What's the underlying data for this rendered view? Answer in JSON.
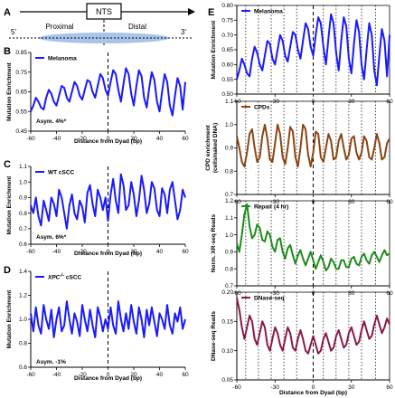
{
  "diagram": {
    "label": "A",
    "nts": "NTS",
    "proximal": "Proximal",
    "distal": "Distal",
    "five_prime": "5'",
    "three_prime": "3'"
  },
  "chart_data": [
    {
      "panel": "B",
      "type": "line",
      "legend": "Melanoma",
      "color": "#1a1aff",
      "ylabel": "Mutation Enrichment",
      "xlabel": "Distance from Dyad (bp)",
      "xlim": [
        -60,
        60
      ],
      "xticks": [
        -60,
        -40,
        -20,
        0,
        20,
        40,
        60
      ],
      "ylim": [
        0.45,
        0.85
      ],
      "yticks": [
        0.45,
        0.55,
        0.65,
        0.75,
        0.85
      ],
      "ytick_labels": [
        "0.45",
        "0.55",
        "0.65",
        "0.75",
        "0.85"
      ],
      "annotation": "Asym. 4%*",
      "x": [
        -60,
        -58,
        -56,
        -54,
        -52,
        -50,
        -48,
        -46,
        -44,
        -42,
        -40,
        -38,
        -36,
        -34,
        -32,
        -30,
        -28,
        -26,
        -24,
        -22,
        -20,
        -18,
        -16,
        -14,
        -12,
        -10,
        -8,
        -6,
        -4,
        -2,
        0,
        2,
        4,
        6,
        8,
        10,
        12,
        14,
        16,
        18,
        20,
        22,
        24,
        26,
        28,
        30,
        32,
        34,
        36,
        38,
        40,
        42,
        44,
        46,
        48,
        50,
        52,
        54,
        56,
        58,
        60
      ],
      "y": [
        0.55,
        0.58,
        0.62,
        0.6,
        0.57,
        0.56,
        0.62,
        0.66,
        0.64,
        0.6,
        0.58,
        0.63,
        0.68,
        0.67,
        0.62,
        0.6,
        0.65,
        0.7,
        0.68,
        0.63,
        0.61,
        0.66,
        0.71,
        0.7,
        0.65,
        0.62,
        0.68,
        0.74,
        0.72,
        0.66,
        0.63,
        0.7,
        0.76,
        0.74,
        0.66,
        0.6,
        0.69,
        0.77,
        0.74,
        0.64,
        0.58,
        0.68,
        0.76,
        0.73,
        0.62,
        0.57,
        0.67,
        0.75,
        0.71,
        0.6,
        0.55,
        0.65,
        0.74,
        0.7,
        0.58,
        0.53,
        0.63,
        0.72,
        0.68,
        0.56,
        0.7
      ]
    },
    {
      "panel": "C",
      "type": "line",
      "legend": "WT cSCC",
      "color": "#1a1aff",
      "ylabel": "Mutation Enrichment",
      "xlabel": "Distance from Dyad (bp)",
      "xlim": [
        -60,
        60
      ],
      "xticks": [
        -60,
        -40,
        -20,
        0,
        20,
        40,
        60
      ],
      "ylim": [
        0.6,
        1.1
      ],
      "yticks": [
        0.6,
        0.7,
        0.8,
        0.9,
        1.0,
        1.1
      ],
      "ytick_labels": [
        "0.6",
        "0.7",
        "0.8",
        "0.9",
        "1.0",
        "1.1"
      ],
      "annotation": "Asym. 6%*",
      "x": [
        -60,
        -58,
        -56,
        -54,
        -52,
        -50,
        -48,
        -46,
        -44,
        -42,
        -40,
        -38,
        -36,
        -34,
        -32,
        -30,
        -28,
        -26,
        -24,
        -22,
        -20,
        -18,
        -16,
        -14,
        -12,
        -10,
        -8,
        -6,
        -4,
        -2,
        0,
        2,
        4,
        6,
        8,
        10,
        12,
        14,
        16,
        18,
        20,
        22,
        24,
        26,
        28,
        30,
        32,
        34,
        36,
        38,
        40,
        42,
        44,
        46,
        48,
        50,
        52,
        54,
        56,
        58,
        60
      ],
      "y": [
        0.85,
        0.8,
        0.9,
        0.78,
        0.72,
        0.88,
        0.82,
        0.75,
        0.9,
        0.86,
        0.78,
        0.95,
        0.9,
        0.8,
        0.7,
        0.85,
        0.92,
        0.8,
        0.76,
        0.88,
        0.84,
        0.74,
        0.93,
        0.98,
        0.86,
        0.78,
        0.95,
        0.9,
        0.82,
        0.9,
        0.75,
        0.92,
        1.02,
        0.88,
        0.8,
        1.05,
        0.98,
        0.82,
        0.85,
        1.0,
        0.92,
        0.78,
        0.88,
        1.04,
        0.95,
        0.8,
        0.86,
        1.0,
        0.96,
        0.82,
        0.78,
        0.96,
        0.92,
        0.8,
        0.95,
        1.0,
        0.88,
        0.76,
        0.82,
        0.95,
        0.9
      ]
    },
    {
      "panel": "D",
      "type": "line",
      "legend": "XPC-/- cSCC",
      "color": "#1a1aff",
      "ylabel": "Mutation Enrichment",
      "xlabel": "Distance from Dyad (bp)",
      "xlim": [
        -60,
        60
      ],
      "xticks": [
        -60,
        -40,
        -20,
        0,
        20,
        40,
        60
      ],
      "ylim": [
        0.6,
        1.4
      ],
      "yticks": [
        0.6,
        0.8,
        1.0,
        1.2,
        1.4
      ],
      "ytick_labels": [
        "0.6",
        "0.8",
        "1.0",
        "1.2",
        "1.4"
      ],
      "annotation": "Asym. -1%",
      "x": [
        -60,
        -58,
        -56,
        -54,
        -52,
        -50,
        -48,
        -46,
        -44,
        -42,
        -40,
        -38,
        -36,
        -34,
        -32,
        -30,
        -28,
        -26,
        -24,
        -22,
        -20,
        -18,
        -16,
        -14,
        -12,
        -10,
        -8,
        -6,
        -4,
        -2,
        0,
        2,
        4,
        6,
        8,
        10,
        12,
        14,
        16,
        18,
        20,
        22,
        24,
        26,
        28,
        30,
        32,
        34,
        36,
        38,
        40,
        42,
        44,
        46,
        48,
        50,
        52,
        54,
        56,
        58,
        60
      ],
      "y": [
        1.05,
        0.9,
        1.1,
        0.95,
        0.88,
        1.12,
        1.0,
        0.92,
        1.08,
        0.85,
        1.0,
        1.1,
        0.9,
        0.95,
        1.15,
        1.0,
        0.88,
        1.05,
        0.98,
        0.86,
        1.12,
        1.0,
        0.9,
        1.08,
        0.95,
        0.85,
        1.1,
        1.02,
        0.9,
        1.0,
        0.92,
        1.1,
        0.95,
        0.88,
        1.15,
        1.0,
        0.9,
        1.05,
        0.92,
        1.12,
        0.98,
        0.88,
        1.1,
        1.0,
        0.85,
        1.08,
        0.95,
        1.1,
        0.98,
        0.86,
        1.05,
        1.0,
        0.92,
        1.12,
        0.95,
        0.88,
        1.05,
        0.98,
        1.1,
        0.92,
        1.0
      ]
    },
    {
      "panel": "E1",
      "type": "line",
      "legend": "Melanoma",
      "color": "#1a1aff",
      "ylabel": "Mutation Enrichment",
      "xlim": [
        -60,
        60
      ],
      "xticks": [
        -60,
        -30,
        0,
        30,
        60
      ],
      "ylim": [
        0.5,
        0.8
      ],
      "yticks": [
        0.5,
        0.55,
        0.6,
        0.65,
        0.7,
        0.75,
        0.8
      ],
      "ytick_labels": [
        "0.50",
        "0.55",
        "0.60",
        "0.65",
        "0.70",
        "0.75",
        "0.80"
      ],
      "x": [
        -60,
        -58,
        -56,
        -54,
        -52,
        -50,
        -48,
        -46,
        -44,
        -42,
        -40,
        -38,
        -36,
        -34,
        -32,
        -30,
        -28,
        -26,
        -24,
        -22,
        -20,
        -18,
        -16,
        -14,
        -12,
        -10,
        -8,
        -6,
        -4,
        -2,
        0,
        2,
        4,
        6,
        8,
        10,
        12,
        14,
        16,
        18,
        20,
        22,
        24,
        26,
        28,
        30,
        32,
        34,
        36,
        38,
        40,
        42,
        44,
        46,
        48,
        50,
        52,
        54,
        56,
        58,
        60
      ],
      "y": [
        0.55,
        0.58,
        0.62,
        0.6,
        0.57,
        0.56,
        0.62,
        0.66,
        0.64,
        0.6,
        0.58,
        0.63,
        0.68,
        0.67,
        0.62,
        0.6,
        0.65,
        0.7,
        0.68,
        0.63,
        0.61,
        0.66,
        0.71,
        0.7,
        0.65,
        0.62,
        0.68,
        0.74,
        0.72,
        0.66,
        0.63,
        0.7,
        0.76,
        0.74,
        0.66,
        0.6,
        0.69,
        0.77,
        0.74,
        0.64,
        0.58,
        0.68,
        0.76,
        0.73,
        0.62,
        0.57,
        0.67,
        0.75,
        0.71,
        0.6,
        0.55,
        0.65,
        0.74,
        0.7,
        0.58,
        0.53,
        0.63,
        0.72,
        0.68,
        0.56,
        0.7
      ]
    },
    {
      "panel": "E2",
      "type": "line",
      "legend": "CPDs",
      "color": "#8b4513",
      "ylabel": "CPD enrichment (cells/naked DNA)",
      "xlim": [
        -60,
        60
      ],
      "xticks": [
        -60,
        -30,
        0,
        30,
        60
      ],
      "ylim": [
        0.7,
        1.1
      ],
      "yticks": [
        0.7,
        0.8,
        0.9,
        1.0,
        1.1
      ],
      "ytick_labels": [
        "0.7",
        "0.8",
        "0.9",
        "1.0",
        "1.1"
      ],
      "x": [
        -60,
        -58,
        -56,
        -54,
        -52,
        -50,
        -48,
        -46,
        -44,
        -42,
        -40,
        -38,
        -36,
        -34,
        -32,
        -30,
        -28,
        -26,
        -24,
        -22,
        -20,
        -18,
        -16,
        -14,
        -12,
        -10,
        -8,
        -6,
        -4,
        -2,
        0,
        2,
        4,
        6,
        8,
        10,
        12,
        14,
        16,
        18,
        20,
        22,
        24,
        26,
        28,
        30,
        32,
        34,
        36,
        38,
        40,
        42,
        44,
        46,
        48,
        50,
        52,
        54,
        56,
        58,
        60
      ],
      "y": [
        0.95,
        0.9,
        0.84,
        0.82,
        0.88,
        0.96,
        0.98,
        0.9,
        0.84,
        0.86,
        0.95,
        1.0,
        0.94,
        0.85,
        0.84,
        0.92,
        1.0,
        0.96,
        0.86,
        0.83,
        0.9,
        0.99,
        0.97,
        0.86,
        0.82,
        0.9,
        1.0,
        0.98,
        0.87,
        0.82,
        0.88,
        0.97,
        0.96,
        0.86,
        0.84,
        0.9,
        0.96,
        0.93,
        0.85,
        0.86,
        0.93,
        0.96,
        0.9,
        0.85,
        0.87,
        0.94,
        0.95,
        0.88,
        0.85,
        0.88,
        0.95,
        0.93,
        0.86,
        0.85,
        0.9,
        0.96,
        0.92,
        0.85,
        0.86,
        0.92,
        0.94
      ]
    },
    {
      "panel": "E3",
      "type": "line",
      "legend": "Repair (4 hr)",
      "color": "#1e8c1e",
      "ylabel": "Norm. XR-seq Reads",
      "xlim": [
        -60,
        60
      ],
      "xticks": [
        -60,
        -30,
        0,
        30,
        60
      ],
      "ylim": [
        0.7,
        1.2
      ],
      "yticks": [
        0.7,
        0.8,
        0.9,
        1.0,
        1.1,
        1.2
      ],
      "ytick_labels": [
        "0.7",
        "0.8",
        "0.9",
        "1.0",
        "1.1",
        "1.2"
      ],
      "x": [
        -60,
        -58,
        -56,
        -54,
        -52,
        -50,
        -48,
        -46,
        -44,
        -42,
        -40,
        -38,
        -36,
        -34,
        -32,
        -30,
        -28,
        -26,
        -24,
        -22,
        -20,
        -18,
        -16,
        -14,
        -12,
        -10,
        -8,
        -6,
        -4,
        -2,
        0,
        2,
        4,
        6,
        8,
        10,
        12,
        14,
        16,
        18,
        20,
        22,
        24,
        26,
        28,
        30,
        32,
        34,
        36,
        38,
        40,
        42,
        44,
        46,
        48,
        50,
        52,
        54,
        56,
        58,
        60
      ],
      "y": [
        0.95,
        0.9,
        1.0,
        1.12,
        1.18,
        1.05,
        0.98,
        1.0,
        1.06,
        1.04,
        0.97,
        0.96,
        1.02,
        1.0,
        0.93,
        0.9,
        0.97,
        0.98,
        0.9,
        0.86,
        0.92,
        0.94,
        0.88,
        0.83,
        0.88,
        0.91,
        0.86,
        0.82,
        0.86,
        0.9,
        0.85,
        0.8,
        0.84,
        0.88,
        0.84,
        0.79,
        0.81,
        0.86,
        0.84,
        0.8,
        0.8,
        0.85,
        0.85,
        0.81,
        0.81,
        0.86,
        0.87,
        0.83,
        0.82,
        0.87,
        0.89,
        0.85,
        0.83,
        0.88,
        0.9,
        0.87,
        0.84,
        0.88,
        0.91,
        0.88,
        0.89
      ]
    },
    {
      "panel": "E4",
      "type": "line",
      "legend": "DNase-seq",
      "color": "#8b1a4a",
      "ylabel": "DNase-seq Reads",
      "xlabel": "Distance from Dyad (bp)",
      "xlim": [
        -60,
        60
      ],
      "xticks": [
        -60,
        -30,
        0,
        30,
        60
      ],
      "ylim": [
        0.05,
        0.2
      ],
      "yticks": [
        0.05,
        0.1,
        0.15,
        0.2
      ],
      "ytick_labels": [
        "0.05",
        "0.10",
        "0.15",
        "0.20"
      ],
      "x": [
        -60,
        -58,
        -56,
        -54,
        -52,
        -50,
        -48,
        -46,
        -44,
        -42,
        -40,
        -38,
        -36,
        -34,
        -32,
        -30,
        -28,
        -26,
        -24,
        -22,
        -20,
        -18,
        -16,
        -14,
        -12,
        -10,
        -8,
        -6,
        -4,
        -2,
        0,
        2,
        4,
        6,
        8,
        10,
        12,
        14,
        16,
        18,
        20,
        22,
        24,
        26,
        28,
        30,
        32,
        34,
        36,
        38,
        40,
        42,
        44,
        46,
        48,
        50,
        52,
        54,
        56,
        58,
        60
      ],
      "y": [
        0.19,
        0.17,
        0.14,
        0.12,
        0.14,
        0.16,
        0.15,
        0.12,
        0.11,
        0.13,
        0.15,
        0.14,
        0.11,
        0.1,
        0.12,
        0.14,
        0.13,
        0.11,
        0.1,
        0.12,
        0.14,
        0.13,
        0.105,
        0.1,
        0.12,
        0.135,
        0.12,
        0.1,
        0.095,
        0.11,
        0.125,
        0.11,
        0.095,
        0.1,
        0.12,
        0.13,
        0.115,
        0.1,
        0.105,
        0.125,
        0.135,
        0.12,
        0.105,
        0.11,
        0.13,
        0.14,
        0.125,
        0.11,
        0.115,
        0.135,
        0.15,
        0.135,
        0.12,
        0.125,
        0.145,
        0.16,
        0.145,
        0.13,
        0.14,
        0.155,
        0.145
      ]
    }
  ]
}
